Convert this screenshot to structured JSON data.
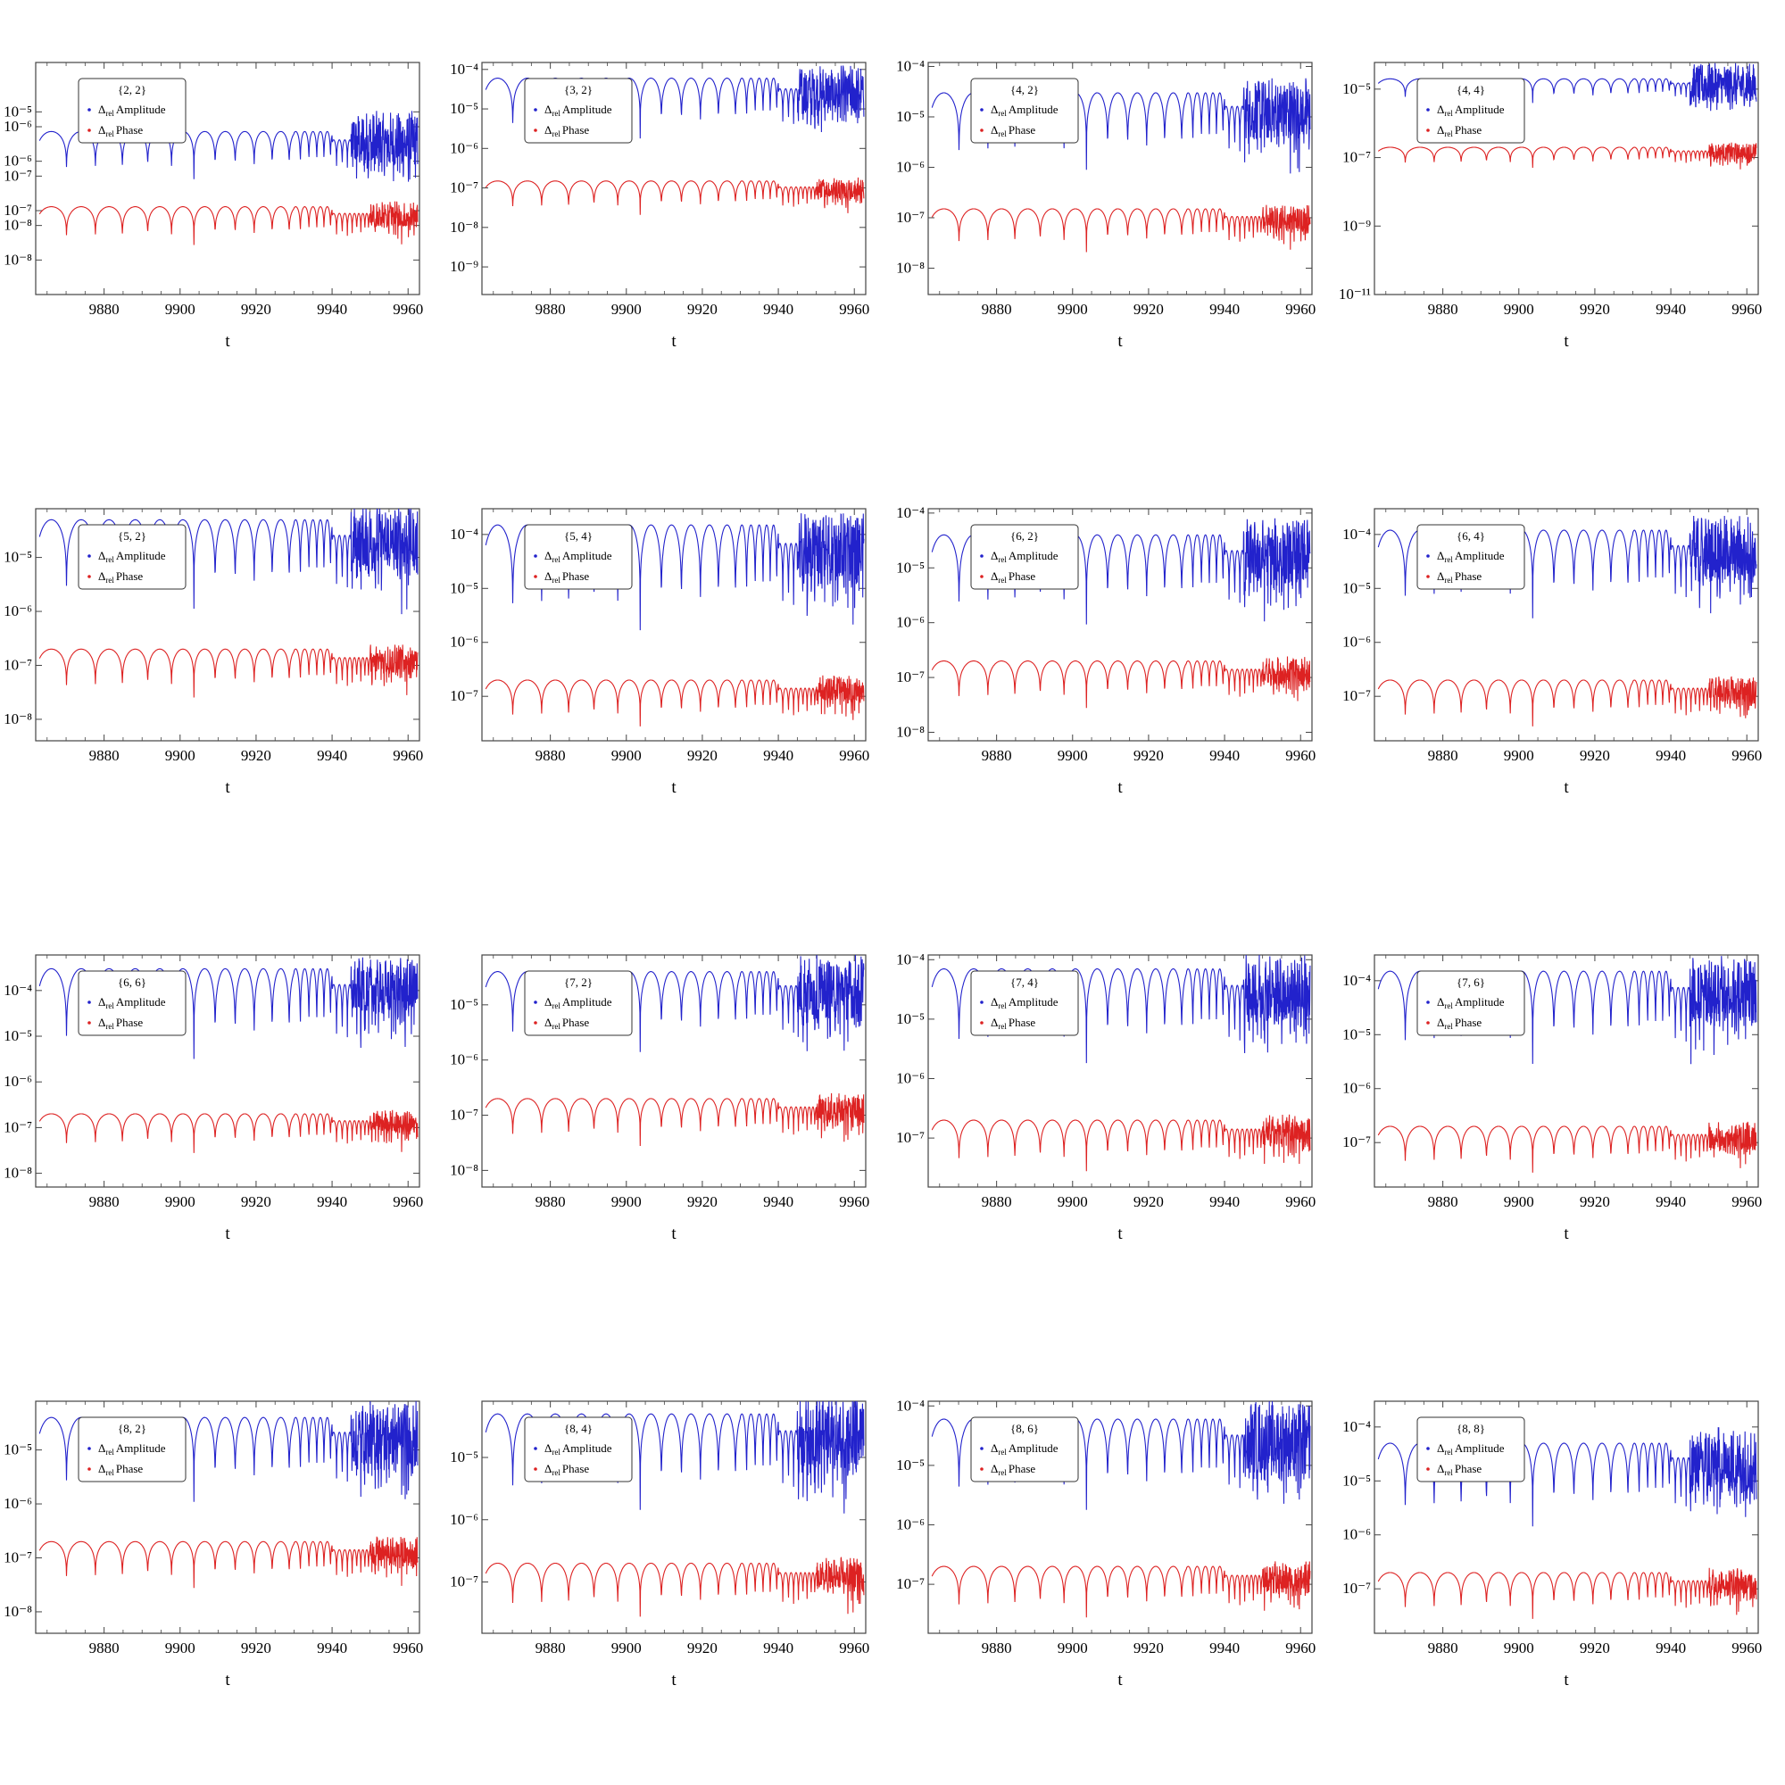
{
  "colors": {
    "amplitude": "#2222cc",
    "phase": "#dd2222",
    "frame": "#444444"
  },
  "legend_entries": [
    {
      "symbol": "Δ",
      "sub": "rel",
      "text": "Amplitude"
    },
    {
      "symbol": "Δ",
      "sub": "rel",
      "text": "Phase"
    }
  ],
  "xlabel": "t",
  "xticks": [
    9880,
    9900,
    9920,
    9940,
    9960
  ],
  "chart_data": [
    {
      "type": "line",
      "title": "{2, 2}",
      "xlabel": "t",
      "xlim": [
        9862,
        9963
      ],
      "log_y": true,
      "ylim": [
        2e-09,
        0.0001
      ],
      "yticks": [
        {
          "v": 1e-05,
          "label": "1 × 10⁻⁵"
        },
        {
          "v": 5e-06,
          "label": "5 × 10⁻⁶"
        },
        {
          "v": 1e-06,
          "label": "1 × 10⁻⁶"
        },
        {
          "v": 5e-07,
          "label": "5 × 10⁻⁷"
        },
        {
          "v": 1e-07,
          "label": "1 × 10⁻⁷"
        },
        {
          "v": 5e-08,
          "label": "5 × 10⁻⁸"
        },
        {
          "v": 1e-08,
          "label": "1 × 10⁻⁸"
        }
      ],
      "series": [
        {
          "name": "Δrel Amplitude",
          "peak": 4e-06,
          "dip": 3e-07
        },
        {
          "name": "Δrel Phase",
          "peak": 1.2e-07,
          "dip": 1.5e-08
        }
      ]
    },
    {
      "type": "line",
      "title": "{3, 2}",
      "xlabel": "t",
      "xlim": [
        9862,
        9963
      ],
      "log_y": true,
      "ylim": [
        2e-10,
        0.00015
      ],
      "yticks": [
        {
          "v": 0.0001,
          "label": "10⁻⁴"
        },
        {
          "v": 1e-05,
          "label": "10⁻⁵"
        },
        {
          "v": 1e-06,
          "label": "10⁻⁶"
        },
        {
          "v": 1e-07,
          "label": "10⁻⁷"
        },
        {
          "v": 1e-08,
          "label": "10⁻⁸"
        },
        {
          "v": 1e-09,
          "label": "10⁻⁹"
        }
      ],
      "series": [
        {
          "name": "Δrel Amplitude",
          "peak": 6e-05,
          "dip": 1e-06
        },
        {
          "name": "Δrel Phase",
          "peak": 1.5e-07,
          "dip": 1.5e-08
        }
      ]
    },
    {
      "type": "line",
      "title": "{4, 2}",
      "xlabel": "t",
      "xlim": [
        9862,
        9963
      ],
      "log_y": true,
      "ylim": [
        3e-09,
        0.00012
      ],
      "yticks": [
        {
          "v": 0.0001,
          "label": "10⁻⁴"
        },
        {
          "v": 1e-05,
          "label": "10⁻⁵"
        },
        {
          "v": 1e-06,
          "label": "10⁻⁶"
        },
        {
          "v": 1e-07,
          "label": "10⁻⁷"
        },
        {
          "v": 1e-08,
          "label": "10⁻⁸"
        }
      ],
      "series": [
        {
          "name": "Δrel Amplitude",
          "peak": 3e-05,
          "dip": 5e-07
        },
        {
          "name": "Δrel Phase",
          "peak": 1.5e-07,
          "dip": 1.5e-08
        }
      ]
    },
    {
      "type": "line",
      "title": "{4, 4}",
      "xlabel": "t",
      "xlim": [
        9862,
        9963
      ],
      "log_y": true,
      "ylim": [
        1e-11,
        6e-05
      ],
      "yticks": [
        {
          "v": 1e-05,
          "label": "10⁻⁵"
        },
        {
          "v": 1e-07,
          "label": "10⁻⁷"
        },
        {
          "v": 1e-09,
          "label": "10⁻⁹"
        },
        {
          "v": 1e-11,
          "label": "10⁻¹¹"
        }
      ],
      "series": [
        {
          "name": "Δrel Amplitude",
          "peak": 2e-05,
          "dip": 3e-06
        },
        {
          "name": "Δrel Phase",
          "peak": 2e-07,
          "dip": 4e-08
        }
      ]
    },
    {
      "type": "line",
      "title": "{5, 2}",
      "xlabel": "t",
      "xlim": [
        9862,
        9963
      ],
      "log_y": true,
      "ylim": [
        4e-09,
        8e-05
      ],
      "yticks": [
        {
          "v": 1e-05,
          "label": "10⁻⁵"
        },
        {
          "v": 1e-06,
          "label": "10⁻⁶"
        },
        {
          "v": 1e-07,
          "label": "10⁻⁷"
        },
        {
          "v": 1e-08,
          "label": "10⁻⁸"
        }
      ],
      "series": [
        {
          "name": "Δrel Amplitude",
          "peak": 5e-05,
          "dip": 6e-07
        },
        {
          "name": "Δrel Phase",
          "peak": 2e-07,
          "dip": 1.8e-08
        }
      ]
    },
    {
      "type": "line",
      "title": "{5, 4}",
      "xlabel": "t",
      "xlim": [
        9862,
        9963
      ],
      "log_y": true,
      "ylim": [
        1.5e-08,
        0.0003
      ],
      "yticks": [
        {
          "v": 0.0001,
          "label": "10⁻⁴"
        },
        {
          "v": 1e-05,
          "label": "10⁻⁵"
        },
        {
          "v": 1e-06,
          "label": "10⁻⁶"
        },
        {
          "v": 1e-07,
          "label": "10⁻⁷"
        }
      ],
      "series": [
        {
          "name": "Δrel Amplitude",
          "peak": 0.00015,
          "dip": 8e-07
        },
        {
          "name": "Δrel Phase",
          "peak": 2e-07,
          "dip": 2e-08
        }
      ]
    },
    {
      "type": "line",
      "title": "{6, 2}",
      "xlabel": "t",
      "xlim": [
        9862,
        9963
      ],
      "log_y": true,
      "ylim": [
        7e-09,
        0.00012
      ],
      "yticks": [
        {
          "v": 0.0001,
          "label": "10⁻⁴"
        },
        {
          "v": 1e-05,
          "label": "10⁻⁵"
        },
        {
          "v": 1e-06,
          "label": "10⁻⁶"
        },
        {
          "v": 1e-07,
          "label": "10⁻⁷"
        },
        {
          "v": 1e-08,
          "label": "10⁻⁸"
        }
      ],
      "series": [
        {
          "name": "Δrel Amplitude",
          "peak": 4e-05,
          "dip": 5e-07
        },
        {
          "name": "Δrel Phase",
          "peak": 2e-07,
          "dip": 2e-08
        }
      ]
    },
    {
      "type": "line",
      "title": "{6, 4}",
      "xlabel": "t",
      "xlim": [
        9862,
        9963
      ],
      "log_y": true,
      "ylim": [
        1.5e-08,
        0.0003
      ],
      "yticks": [
        {
          "v": 0.0001,
          "label": "10⁻⁴"
        },
        {
          "v": 1e-05,
          "label": "10⁻⁵"
        },
        {
          "v": 1e-06,
          "label": "10⁻⁶"
        },
        {
          "v": 1e-07,
          "label": "10⁻⁷"
        }
      ],
      "series": [
        {
          "name": "Δrel Amplitude",
          "peak": 0.00012,
          "dip": 1.5e-06
        },
        {
          "name": "Δrel Phase",
          "peak": 2e-07,
          "dip": 2e-08
        }
      ]
    },
    {
      "type": "line",
      "title": "{6, 6}",
      "xlabel": "t",
      "xlim": [
        9862,
        9963
      ],
      "log_y": true,
      "ylim": [
        5e-09,
        0.0006
      ],
      "yticks": [
        {
          "v": 0.0001,
          "label": "10⁻⁴"
        },
        {
          "v": 1e-05,
          "label": "10⁻⁵"
        },
        {
          "v": 1e-06,
          "label": "10⁻⁶"
        },
        {
          "v": 1e-07,
          "label": "10⁻⁷"
        },
        {
          "v": 1e-08,
          "label": "10⁻⁸"
        }
      ],
      "series": [
        {
          "name": "Δrel Amplitude",
          "peak": 0.0003,
          "dip": 1.5e-06
        },
        {
          "name": "Δrel Phase",
          "peak": 2e-07,
          "dip": 2e-08
        }
      ]
    },
    {
      "type": "line",
      "title": "{7, 2}",
      "xlabel": "t",
      "xlim": [
        9862,
        9963
      ],
      "log_y": true,
      "ylim": [
        5e-09,
        8e-05
      ],
      "yticks": [
        {
          "v": 1e-05,
          "label": "10⁻⁵"
        },
        {
          "v": 1e-06,
          "label": "10⁻⁶"
        },
        {
          "v": 1e-07,
          "label": "10⁻⁷"
        },
        {
          "v": 1e-08,
          "label": "10⁻⁸"
        }
      ],
      "series": [
        {
          "name": "Δrel Amplitude",
          "peak": 4e-05,
          "dip": 8e-07
        },
        {
          "name": "Δrel Phase",
          "peak": 2e-07,
          "dip": 2e-08
        }
      ]
    },
    {
      "type": "line",
      "title": "{7, 4}",
      "xlabel": "t",
      "xlim": [
        9862,
        9963
      ],
      "log_y": true,
      "ylim": [
        1.5e-08,
        0.00012
      ],
      "yticks": [
        {
          "v": 0.0001,
          "label": "10⁻⁴"
        },
        {
          "v": 1e-05,
          "label": "10⁻⁵"
        },
        {
          "v": 1e-06,
          "label": "10⁻⁶"
        },
        {
          "v": 1e-07,
          "label": "10⁻⁷"
        }
      ],
      "series": [
        {
          "name": "Δrel Amplitude",
          "peak": 7e-05,
          "dip": 1e-06
        },
        {
          "name": "Δrel Phase",
          "peak": 2e-07,
          "dip": 2e-08
        }
      ]
    },
    {
      "type": "line",
      "title": "{7, 6}",
      "xlabel": "t",
      "xlim": [
        9862,
        9963
      ],
      "log_y": true,
      "ylim": [
        1.5e-08,
        0.0003
      ],
      "yticks": [
        {
          "v": 0.0001,
          "label": "10⁻⁴"
        },
        {
          "v": 1e-05,
          "label": "10⁻⁵"
        },
        {
          "v": 1e-06,
          "label": "10⁻⁶"
        },
        {
          "v": 1e-07,
          "label": "10⁻⁷"
        }
      ],
      "series": [
        {
          "name": "Δrel Amplitude",
          "peak": 0.00015,
          "dip": 1.5e-06
        },
        {
          "name": "Δrel Phase",
          "peak": 2e-07,
          "dip": 2e-08
        }
      ]
    },
    {
      "type": "line",
      "title": "{8, 2}",
      "xlabel": "t",
      "xlim": [
        9862,
        9963
      ],
      "log_y": true,
      "ylim": [
        4e-09,
        8e-05
      ],
      "yticks": [
        {
          "v": 1e-05,
          "label": "10⁻⁵"
        },
        {
          "v": 1e-06,
          "label": "10⁻⁶"
        },
        {
          "v": 1e-07,
          "label": "10⁻⁷"
        },
        {
          "v": 1e-08,
          "label": "10⁻⁸"
        }
      ],
      "series": [
        {
          "name": "Δrel Amplitude",
          "peak": 4e-05,
          "dip": 6e-07
        },
        {
          "name": "Δrel Phase",
          "peak": 2e-07,
          "dip": 2e-08
        }
      ]
    },
    {
      "type": "line",
      "title": "{8, 4}",
      "xlabel": "t",
      "xlim": [
        9862,
        9963
      ],
      "log_y": true,
      "ylim": [
        1.5e-08,
        8e-05
      ],
      "yticks": [
        {
          "v": 1e-05,
          "label": "10⁻⁵"
        },
        {
          "v": 1e-06,
          "label": "10⁻⁶"
        },
        {
          "v": 1e-07,
          "label": "10⁻⁷"
        }
      ],
      "series": [
        {
          "name": "Δrel Amplitude",
          "peak": 5e-05,
          "dip": 8e-07
        },
        {
          "name": "Δrel Phase",
          "peak": 2e-07,
          "dip": 2e-08
        }
      ]
    },
    {
      "type": "line",
      "title": "{8, 6}",
      "xlabel": "t",
      "xlim": [
        9862,
        9963
      ],
      "log_y": true,
      "ylim": [
        1.5e-08,
        0.00012
      ],
      "yticks": [
        {
          "v": 0.0001,
          "label": "10⁻⁴"
        },
        {
          "v": 1e-05,
          "label": "10⁻⁵"
        },
        {
          "v": 1e-06,
          "label": "10⁻⁶"
        },
        {
          "v": 1e-07,
          "label": "10⁻⁷"
        }
      ],
      "series": [
        {
          "name": "Δrel Amplitude",
          "peak": 6e-05,
          "dip": 1e-06
        },
        {
          "name": "Δrel Phase",
          "peak": 2e-07,
          "dip": 2e-08
        }
      ]
    },
    {
      "type": "line",
      "title": "{8, 8}",
      "xlabel": "t",
      "xlim": [
        9862,
        9963
      ],
      "log_y": true,
      "ylim": [
        1.5e-08,
        0.0003
      ],
      "yticks": [
        {
          "v": 0.0001,
          "label": "10⁻⁴"
        },
        {
          "v": 1e-05,
          "label": "10⁻⁵"
        },
        {
          "v": 1e-06,
          "label": "10⁻⁶"
        },
        {
          "v": 1e-07,
          "label": "10⁻⁷"
        }
      ],
      "series": [
        {
          "name": "Δrel Amplitude",
          "peak": 5e-05,
          "dip": 8e-07
        },
        {
          "name": "Δrel Phase",
          "peak": 2e-07,
          "dip": 2e-08
        }
      ]
    }
  ]
}
